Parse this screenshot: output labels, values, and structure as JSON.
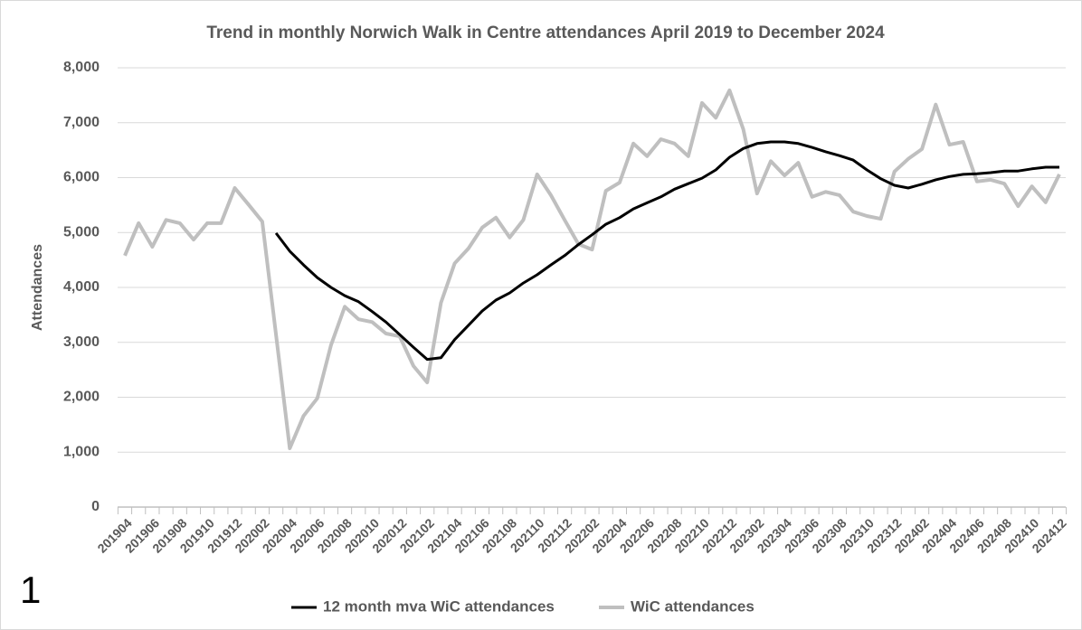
{
  "chart_data": {
    "type": "line",
    "title": "Trend in monthly Norwich Walk in Centre attendances April 2019 to December 2024",
    "y_label": "Attendances",
    "annotation": "1",
    "categories": [
      "201904",
      null,
      "201906",
      null,
      "201908",
      null,
      "201910",
      null,
      "201912",
      null,
      "202002",
      null,
      "202004",
      null,
      "202006",
      null,
      "202008",
      null,
      "202010",
      null,
      "202012",
      null,
      "202102",
      null,
      "202104",
      null,
      "202106",
      null,
      "202108",
      null,
      "202110",
      null,
      "202112",
      null,
      "202202",
      null,
      "202204",
      null,
      "202206",
      null,
      "202208",
      null,
      "202210",
      null,
      "202212",
      null,
      "202302",
      null,
      "202304",
      null,
      "202306",
      null,
      "202308",
      null,
      "202310",
      null,
      "202312",
      null,
      "202402",
      null,
      "202404",
      null,
      "202406",
      null,
      "202408",
      null,
      "202410",
      null,
      "202412"
    ],
    "series": [
      {
        "name": "12 month mva WiC attendances",
        "color": "#000000",
        "width": 3,
        "values": [
          null,
          null,
          null,
          null,
          null,
          null,
          null,
          null,
          null,
          null,
          null,
          4990,
          4660,
          4410,
          4180,
          4000,
          3850,
          3740,
          3560,
          3370,
          3140,
          2910,
          2690,
          2720,
          3050,
          3310,
          3570,
          3770,
          3900,
          4080,
          4230,
          4410,
          4580,
          4780,
          4960,
          5150,
          5270,
          5430,
          5540,
          5650,
          5790,
          5890,
          5990,
          6140,
          6370,
          6530,
          6620,
          6650,
          6650,
          6620,
          6550,
          6470,
          6400,
          6320,
          6140,
          5980,
          5860,
          5810,
          5880,
          5960,
          6020,
          6060,
          6070,
          6090,
          6120,
          6120,
          6160,
          6190,
          6190
        ]
      },
      {
        "name": "WiC attendances",
        "color": "#bfbfbf",
        "width": 4,
        "values": [
          4580,
          5170,
          4740,
          5230,
          5170,
          4870,
          5170,
          5170,
          5810,
          5510,
          5200,
          3140,
          1070,
          1660,
          1980,
          2950,
          3650,
          3420,
          3370,
          3160,
          3110,
          2570,
          2270,
          3720,
          4440,
          4710,
          5090,
          5270,
          4910,
          5230,
          6060,
          5680,
          5230,
          4790,
          4690,
          5760,
          5910,
          6620,
          6390,
          6700,
          6620,
          6390,
          7360,
          7090,
          7590,
          6880,
          5710,
          6300,
          6040,
          6270,
          5650,
          5740,
          5680,
          5380,
          5300,
          5250,
          6110,
          6340,
          6520,
          7330,
          6600,
          6650,
          5930,
          5960,
          5890,
          5480,
          5840,
          5550,
          6060
        ]
      }
    ],
    "ylim": [
      0,
      8000
    ],
    "yticks": [
      0,
      {
        "value": 1000,
        "label": "1,000"
      },
      {
        "value": 2000,
        "label": "2,000"
      },
      {
        "value": 3000,
        "label": "3,000"
      },
      {
        "value": 4000,
        "label": "4,000"
      },
      {
        "value": 5000,
        "label": "5,000"
      },
      {
        "value": 6000,
        "label": "6,000"
      },
      {
        "value": 7000,
        "label": "7,000"
      },
      {
        "value": 8000,
        "label": "8,000"
      }
    ],
    "grid": true,
    "grid_color": "#d9d9d9",
    "legend": "bottom"
  }
}
